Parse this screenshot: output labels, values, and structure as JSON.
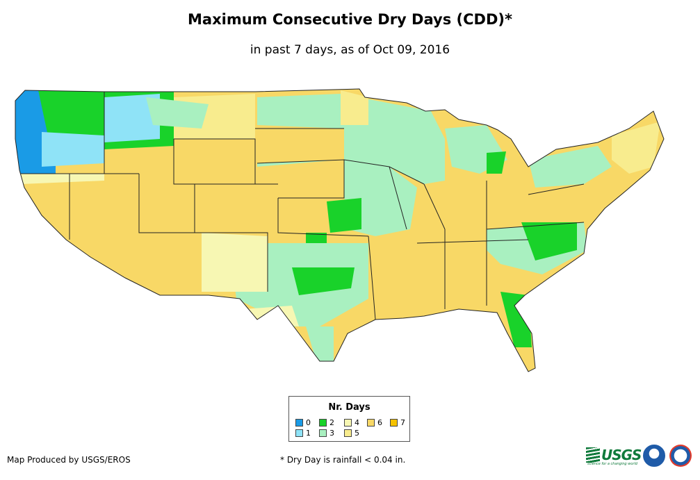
{
  "title": "Maximum Consecutive Dry Days (CDD)*",
  "subtitle": "in past 7 days, as of Oct 09, 2016",
  "legend": {
    "title": "Nr. Days",
    "items": [
      {
        "label": "0",
        "color": "#1a9be6"
      },
      {
        "label": "1",
        "color": "#8fe3f7"
      },
      {
        "label": "2",
        "color": "#19d22a"
      },
      {
        "label": "3",
        "color": "#a9f0c0"
      },
      {
        "label": "4",
        "color": "#f7f7b3"
      },
      {
        "label": "5",
        "color": "#f8ec8e"
      },
      {
        "label": "6",
        "color": "#f8d866"
      },
      {
        "label": "7",
        "color": "#f5c200"
      }
    ]
  },
  "credit": "Map Produced by USGS/EROS",
  "footnote": "* Dry Day is rainfall < 0.04 in.",
  "logos": {
    "usgs": "USGS",
    "usgs_tagline": "science for a changing world"
  }
}
